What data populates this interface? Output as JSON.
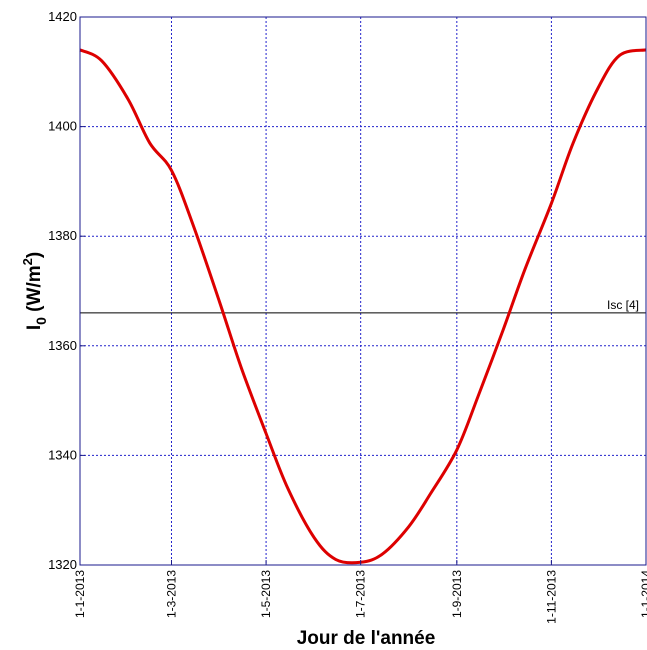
{
  "chart_data": {
    "type": "line",
    "title": "",
    "xlabel": "Jour de l'année",
    "ylabel": "I0 (W/m2)",
    "ylabel_parts": {
      "main": "I",
      "sub": "0",
      "open": " (W/m",
      "sup": "2",
      "close": ")"
    },
    "ylim": [
      1320,
      1420
    ],
    "yticks": [
      1320,
      1340,
      1360,
      1380,
      1400,
      1420
    ],
    "xlim": [
      "2013-01-01",
      "2014-01-01"
    ],
    "xticks": [
      {
        "date": "2013-01-01",
        "label": "1-1-2013"
      },
      {
        "date": "2013-03-01",
        "label": "1-3-2013"
      },
      {
        "date": "2013-05-01",
        "label": "1-5-2013"
      },
      {
        "date": "2013-07-01",
        "label": "1-7-2013"
      },
      {
        "date": "2013-09-01",
        "label": "1-9-2013"
      },
      {
        "date": "2013-11-01",
        "label": "1-11-2013"
      },
      {
        "date": "2014-01-01",
        "label": "1-1-2014"
      }
    ],
    "grid": true,
    "series": [
      {
        "color": "#dd0000",
        "x": [
          "2013-01-01",
          "2013-01-15",
          "2013-02-01",
          "2013-02-15",
          "2013-03-01",
          "2013-03-15",
          "2013-04-01",
          "2013-04-15",
          "2013-05-01",
          "2013-05-15",
          "2013-06-01",
          "2013-06-15",
          "2013-07-01",
          "2013-07-15",
          "2013-08-01",
          "2013-08-15",
          "2013-09-01",
          "2013-09-15",
          "2013-10-01",
          "2013-10-15",
          "2013-11-01",
          "2013-11-15",
          "2013-12-01",
          "2013-12-15",
          "2014-01-01"
        ],
        "y": [
          1414,
          1412,
          1405,
          1397,
          1392,
          1382,
          1368,
          1356,
          1344,
          1334,
          1325,
          1321,
          1320.5,
          1322,
          1327,
          1333,
          1341,
          1351,
          1363,
          1374,
          1386,
          1397,
          1407,
          1413,
          1414
        ]
      }
    ],
    "reference_line": {
      "y": 1366,
      "label": "Isc [4]",
      "color": "#000000"
    }
  }
}
